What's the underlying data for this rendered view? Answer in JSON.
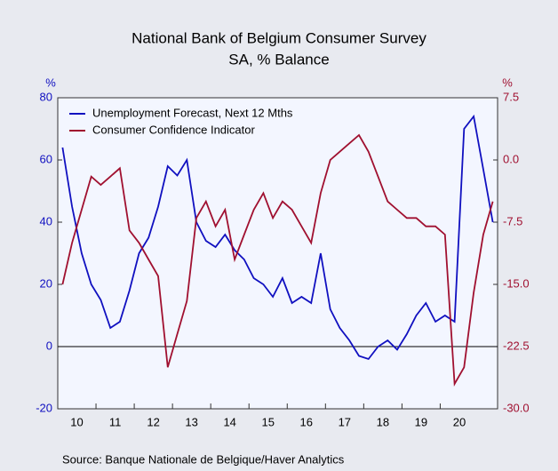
{
  "chart_data": {
    "type": "line",
    "title": "National Bank of Belgium Consumer Survey",
    "subtitle": "SA, % Balance",
    "y_unit": "%",
    "y2_unit": "%",
    "source": "Source:  Banque Nationale de Belgique/Haver Analytics",
    "categories": [
      "10",
      null,
      null,
      null,
      "11",
      null,
      null,
      null,
      "12",
      null,
      null,
      null,
      "13",
      null,
      null,
      null,
      "14",
      null,
      null,
      null,
      "15",
      null,
      null,
      null,
      "16",
      null,
      null,
      null,
      "17",
      null,
      null,
      null,
      "18",
      null,
      null,
      null,
      "19",
      null,
      null,
      null,
      "20",
      null,
      null,
      null,
      null,
      null
    ],
    "series": [
      {
        "name": "Unemployment Forecast, Next 12 Mths",
        "color": "#1010c0",
        "axis": "y",
        "values": [
          64,
          45,
          30,
          20,
          15,
          6,
          8,
          18,
          30,
          35,
          45,
          58,
          55,
          60,
          40,
          34,
          32,
          36,
          31,
          28,
          22,
          20,
          16,
          22,
          14,
          16,
          14,
          30,
          12,
          6,
          2,
          -3,
          -4,
          0,
          2,
          -1,
          4,
          10,
          14,
          8,
          10,
          8,
          70,
          74,
          57,
          40
        ]
      },
      {
        "name": "Consumer Confidence Indicator",
        "color": "#a01030",
        "axis": "y2",
        "values": [
          -15,
          -10,
          -6,
          -2,
          -3,
          -2,
          -1,
          -8.5,
          -10,
          -12,
          -14,
          -25,
          -21,
          -17,
          -7,
          -5,
          -8,
          -6,
          -12,
          -9,
          -6,
          -4,
          -7,
          -5,
          -6,
          -8,
          -10,
          -4,
          0,
          1,
          2,
          3,
          1,
          -2,
          -5,
          -6,
          -7,
          -7,
          -8,
          -8,
          -9,
          -27,
          -25,
          -16,
          -9,
          -5
        ]
      }
    ],
    "ylim": [
      -20,
      80
    ],
    "yticks": [
      -20,
      0,
      20,
      40,
      60,
      80
    ],
    "y2lim": [
      -30,
      7.5
    ],
    "y2ticks": [
      {
        "value": -30,
        "label": "-30.0"
      },
      -22.5,
      {
        "value": -15,
        "label": "-15.0"
      },
      -7.5,
      {
        "value": 0,
        "label": "0.0"
      },
      7.5
    ],
    "zero_line": true,
    "legend": "top-left"
  }
}
